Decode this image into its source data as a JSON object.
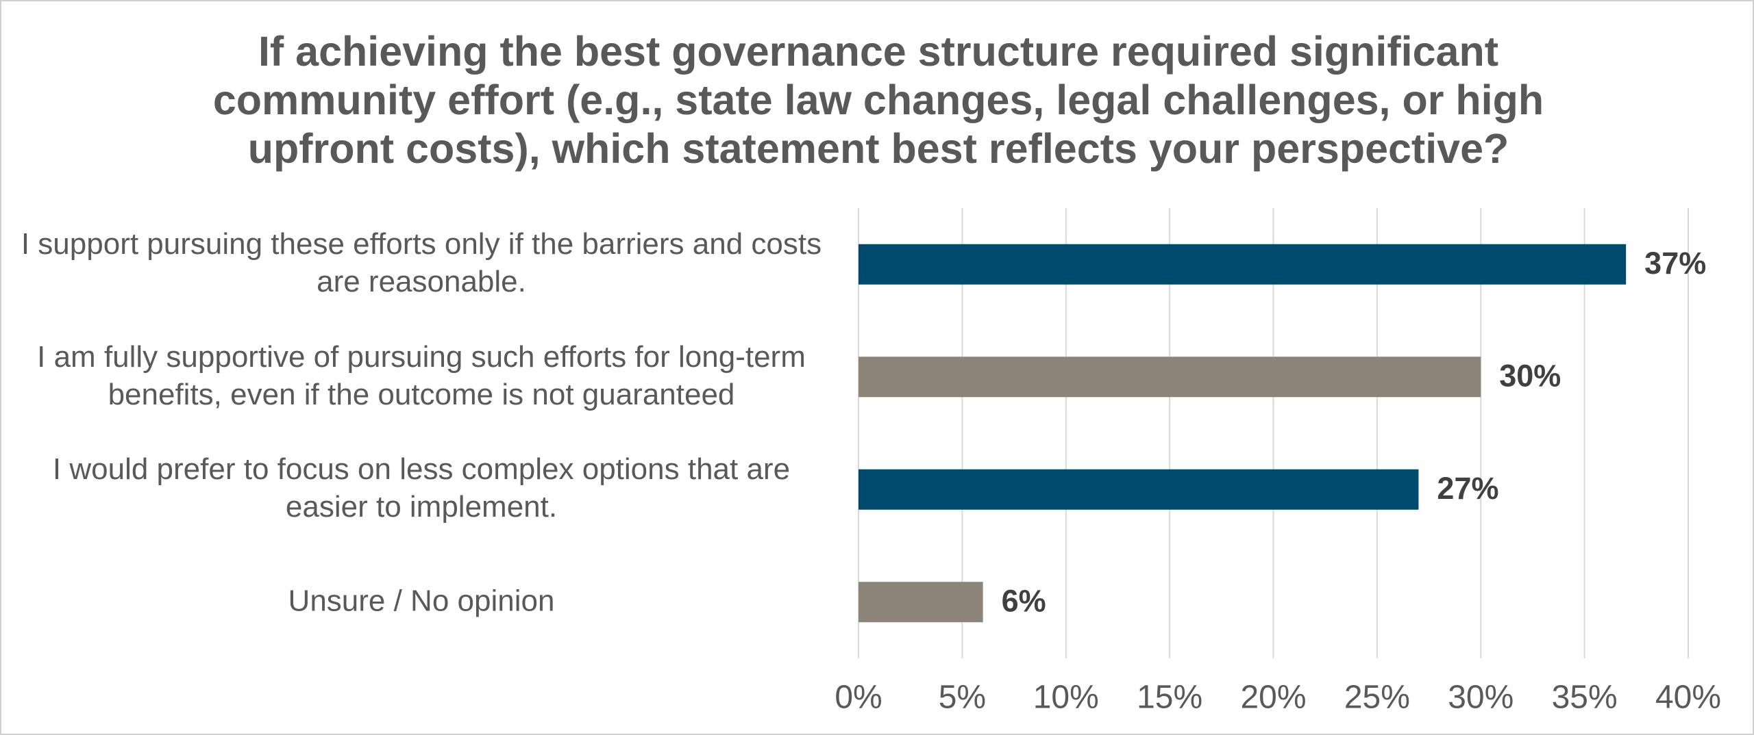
{
  "chart_data": {
    "type": "bar",
    "orientation": "horizontal",
    "title": "If achieving the best governance structure required significant community effort (e.g., state law changes, legal challenges, or high upfront costs), which statement best reflects your perspective?",
    "categories": [
      "I support pursuing these efforts only if the barriers and costs are reasonable.",
      "I am fully supportive of pursuing such efforts for long-term benefits, even if the outcome is not guaranteed",
      "I would prefer to focus on less complex options that are easier to implement.",
      "Unsure / No opinion"
    ],
    "values": [
      37,
      30,
      27,
      6
    ],
    "value_labels": [
      "37%",
      "30%",
      "27%",
      "6%"
    ],
    "colors": [
      "#004a6e",
      "#8c8479",
      "#004a6e",
      "#8c8479"
    ],
    "xlim": [
      0,
      40
    ],
    "xticks": [
      {
        "value": 0,
        "label": "0%"
      },
      {
        "value": 5,
        "label": "5%"
      },
      {
        "value": 10,
        "label": "10%"
      },
      {
        "value": 15,
        "label": "15%"
      },
      {
        "value": 20,
        "label": "20%"
      },
      {
        "value": 25,
        "label": "25%"
      },
      {
        "value": 30,
        "label": "30%"
      },
      {
        "value": 35,
        "label": "35%"
      },
      {
        "value": 40,
        "label": "40%"
      }
    ],
    "grid": true
  }
}
